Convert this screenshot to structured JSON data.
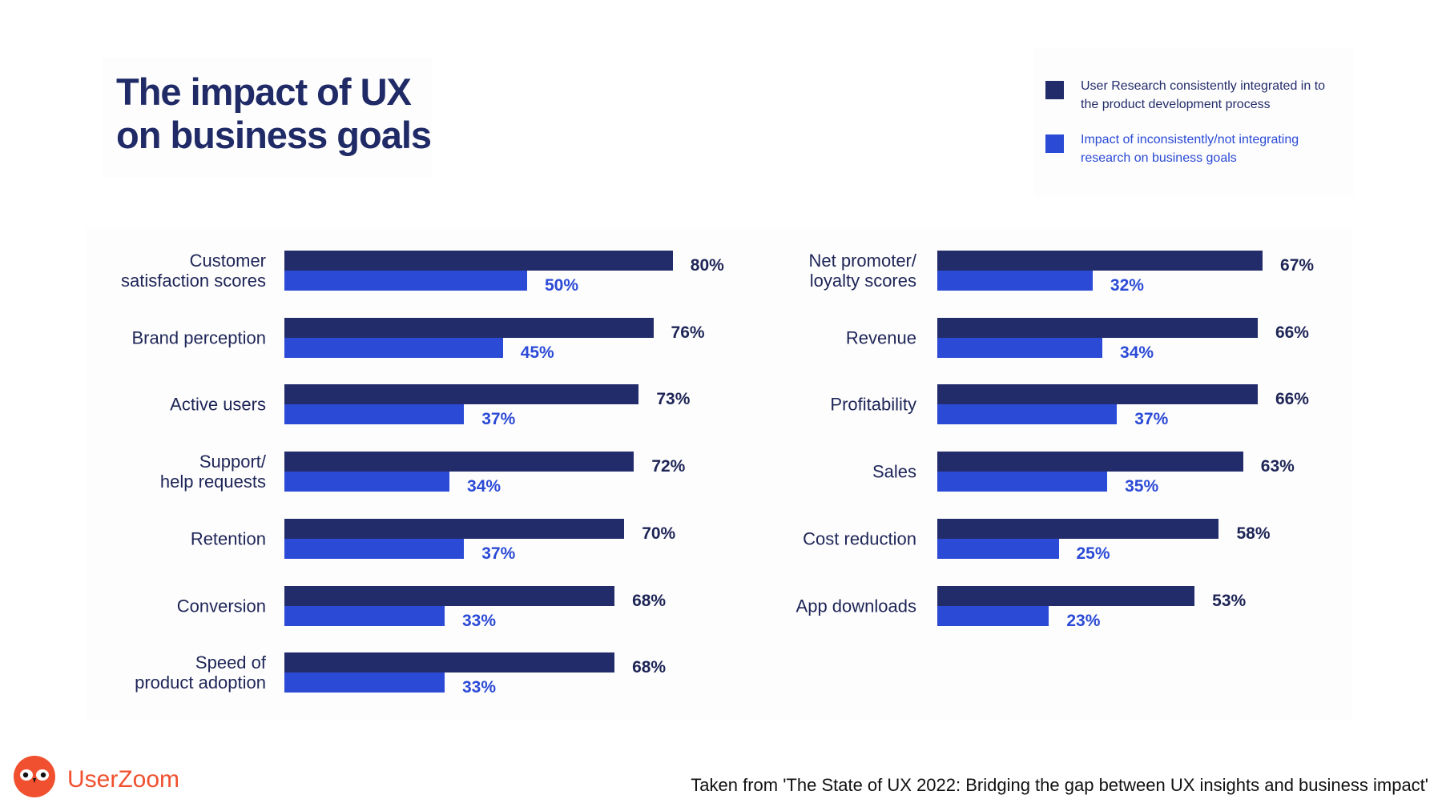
{
  "title_line1": "The impact of UX",
  "title_line2": "on business goals",
  "legend": [
    {
      "label": "User Research consistently integrated in to the product development process",
      "color": "#232c6b"
    },
    {
      "label": "Impact of inconsistently/not integrating research on business goals",
      "color": "#2b4ad6"
    }
  ],
  "chart_data": [
    {
      "type": "bar",
      "orientation": "horizontal",
      "categories": [
        "Customer\nsatisfaction scores",
        "Brand perception",
        "Active users",
        "Support/\nhelp requests",
        "Retention",
        "Conversion",
        "Speed of\nproduct adoption"
      ],
      "series": [
        {
          "name": "User Research consistently integrated in to the product development process",
          "values": [
            80,
            76,
            73,
            72,
            70,
            68,
            68
          ],
          "color": "#232c6b"
        },
        {
          "name": "Impact of inconsistently/not integrating research on business goals",
          "values": [
            50,
            45,
            37,
            34,
            37,
            33,
            33
          ],
          "color": "#2b4ad6"
        }
      ],
      "unit": "%",
      "xlim": [
        0,
        100
      ],
      "grid": false,
      "legend": "top-right"
    },
    {
      "type": "bar",
      "orientation": "horizontal",
      "categories": [
        "Net promoter/\nloyalty scores",
        "Revenue",
        "Profitability",
        "Sales",
        "Cost reduction",
        "App downloads"
      ],
      "series": [
        {
          "name": "User Research consistently integrated in to the product development process",
          "values": [
            67,
            66,
            66,
            63,
            58,
            53
          ],
          "color": "#232c6b"
        },
        {
          "name": "Impact of inconsistently/not integrating research on business goals",
          "values": [
            32,
            34,
            37,
            35,
            25,
            23
          ],
          "color": "#2b4ad6"
        }
      ],
      "unit": "%",
      "xlim": [
        0,
        100
      ],
      "grid": false,
      "legend": "top-right"
    }
  ],
  "footer": {
    "brand": "UserZoom",
    "logo_icon": "owl-logo-icon",
    "brand_color": "#f0502f",
    "source": "Taken from 'The State of UX 2022: Bridging the gap between UX insights and business impact'"
  }
}
